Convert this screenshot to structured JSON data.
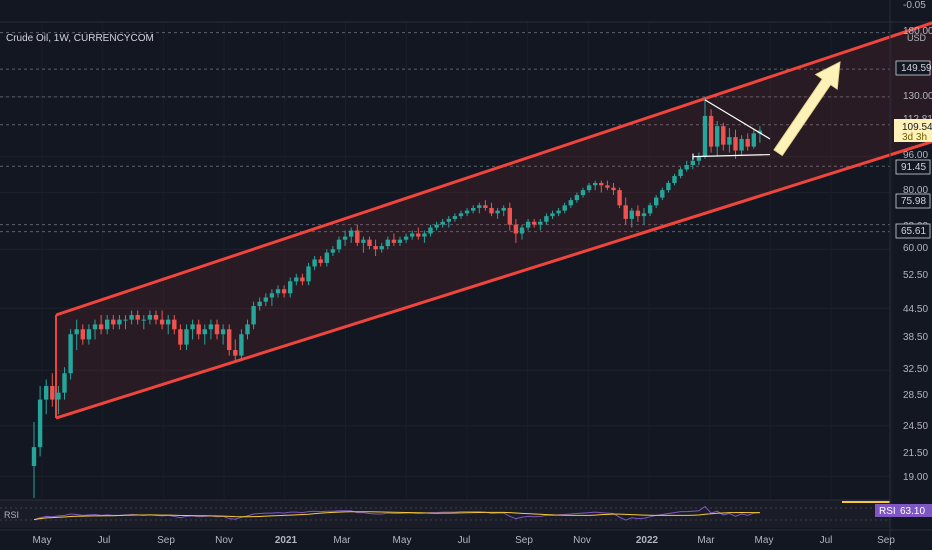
{
  "header": {
    "title": "Crude Oil, 1W, CURRENCYCOM",
    "currency": "USD"
  },
  "colors": {
    "background": "#131722",
    "up": "#26a69a",
    "down": "#ef5350",
    "channel": "#f0453d",
    "arrow": "#fff2b8",
    "rsi": "#7e57c2",
    "rsi_ma": "#f7c93a"
  },
  "price_axis": {
    "ticks": [
      "-0.05",
      "180.00",
      "130.00",
      "112.81",
      "96.00",
      "80.00",
      "68.00",
      "60.00",
      "52.50",
      "44.50",
      "38.50",
      "32.50",
      "28.50",
      "24.50",
      "21.50",
      "19.00"
    ],
    "scale": "log"
  },
  "price_tags": [
    {
      "text": "149.59",
      "style": "dark"
    },
    {
      "text": "109.54",
      "text2": "3d 3h",
      "style": "current"
    },
    {
      "text": "91.45",
      "style": "dark"
    },
    {
      "text": "75.98",
      "style": "dark"
    },
    {
      "text": "65.61",
      "style": "dark"
    }
  ],
  "time_axis": [
    "May",
    "Jul",
    "Sep",
    "Nov",
    "2021",
    "Mar",
    "May",
    "Jul",
    "Sep",
    "Nov",
    "2022",
    "Mar",
    "May",
    "Jul",
    "Sep"
  ],
  "rsi": {
    "label": "RSI",
    "value": "63.10"
  },
  "chart_data": {
    "type": "candlestick",
    "title": "Crude Oil, 1W, CURRENCYCOM",
    "ylabel": "USD",
    "yscale": "log",
    "ylim": [
      17,
      190
    ],
    "x_start": "2020-04-20",
    "interval": "1W",
    "series": [
      {
        "name": "Crude Oil",
        "ohlc": [
          [
            20,
            25,
            17,
            22
          ],
          [
            22,
            30,
            21,
            28
          ],
          [
            28,
            31,
            26,
            30
          ],
          [
            30,
            32,
            27,
            28
          ],
          [
            28,
            30,
            26,
            29
          ],
          [
            29,
            33,
            28,
            32
          ],
          [
            32,
            40,
            31,
            39
          ],
          [
            39,
            42,
            36,
            40
          ],
          [
            40,
            41,
            37,
            38
          ],
          [
            38,
            41,
            37,
            40
          ],
          [
            40,
            42,
            38,
            41
          ],
          [
            41,
            43,
            39,
            40
          ],
          [
            40,
            43,
            39,
            42
          ],
          [
            42,
            43,
            40,
            41
          ],
          [
            41,
            43,
            40,
            42
          ],
          [
            42,
            43,
            40,
            42
          ],
          [
            42,
            44,
            41,
            43
          ],
          [
            43,
            44,
            41,
            42
          ],
          [
            42,
            43,
            40,
            42
          ],
          [
            42,
            44,
            41,
            43
          ],
          [
            43,
            44,
            41,
            42
          ],
          [
            42,
            44,
            40,
            41
          ],
          [
            41,
            43,
            39,
            42
          ],
          [
            42,
            43,
            39,
            40
          ],
          [
            40,
            41,
            36,
            37
          ],
          [
            37,
            41,
            36,
            40
          ],
          [
            40,
            42,
            38,
            41
          ],
          [
            41,
            42,
            38,
            39
          ],
          [
            39,
            41,
            37,
            40
          ],
          [
            40,
            42,
            38,
            41
          ],
          [
            41,
            42,
            38,
            39
          ],
          [
            39,
            41,
            37,
            40
          ],
          [
            40,
            41,
            35,
            36
          ],
          [
            36,
            38,
            34,
            35
          ],
          [
            35,
            40,
            34,
            39
          ],
          [
            39,
            42,
            38,
            41
          ],
          [
            41,
            46,
            40,
            45
          ],
          [
            45,
            47,
            44,
            46
          ],
          [
            46,
            48,
            45,
            47
          ],
          [
            47,
            49,
            45,
            48
          ],
          [
            48,
            50,
            47,
            49
          ],
          [
            49,
            50,
            47,
            48
          ],
          [
            48,
            52,
            47,
            51
          ],
          [
            51,
            53,
            50,
            52
          ],
          [
            52,
            53,
            50,
            51
          ],
          [
            51,
            56,
            50,
            55
          ],
          [
            55,
            58,
            54,
            57
          ],
          [
            57,
            58,
            55,
            56
          ],
          [
            56,
            60,
            55,
            59
          ],
          [
            59,
            61,
            58,
            60
          ],
          [
            60,
            64,
            59,
            63
          ],
          [
            63,
            66,
            61,
            64
          ],
          [
            64,
            67,
            62,
            66
          ],
          [
            66,
            68,
            61,
            62
          ],
          [
            62,
            64,
            59,
            63
          ],
          [
            63,
            64,
            60,
            61
          ],
          [
            61,
            63,
            58,
            60
          ],
          [
            60,
            62,
            59,
            61
          ],
          [
            61,
            64,
            60,
            63
          ],
          [
            63,
            65,
            61,
            62
          ],
          [
            62,
            64,
            61,
            63
          ],
          [
            63,
            65,
            62,
            64
          ],
          [
            64,
            66,
            63,
            65
          ],
          [
            65,
            67,
            63,
            64
          ],
          [
            64,
            66,
            62,
            65
          ],
          [
            65,
            68,
            64,
            67
          ],
          [
            67,
            69,
            66,
            68
          ],
          [
            68,
            70,
            67,
            69
          ],
          [
            69,
            71,
            67,
            70
          ],
          [
            70,
            72,
            69,
            71
          ],
          [
            71,
            73,
            70,
            72
          ],
          [
            72,
            74,
            71,
            73
          ],
          [
            73,
            75,
            72,
            74
          ],
          [
            74,
            76,
            72,
            75
          ],
          [
            75,
            77,
            73,
            74
          ],
          [
            74,
            76,
            71,
            72
          ],
          [
            72,
            74,
            70,
            73
          ],
          [
            73,
            75,
            71,
            74
          ],
          [
            74,
            76,
            66,
            68
          ],
          [
            68,
            70,
            62,
            65
          ],
          [
            65,
            68,
            63,
            67
          ],
          [
            67,
            70,
            66,
            69
          ],
          [
            69,
            70,
            67,
            68
          ],
          [
            68,
            70,
            66,
            69
          ],
          [
            69,
            72,
            68,
            71
          ],
          [
            71,
            73,
            70,
            72
          ],
          [
            72,
            74,
            71,
            73
          ],
          [
            73,
            76,
            72,
            75
          ],
          [
            75,
            78,
            74,
            77
          ],
          [
            77,
            80,
            76,
            79
          ],
          [
            79,
            82,
            78,
            81
          ],
          [
            81,
            84,
            80,
            83
          ],
          [
            83,
            85,
            81,
            84
          ],
          [
            84,
            85,
            80,
            83
          ],
          [
            83,
            85,
            81,
            82
          ],
          [
            82,
            84,
            79,
            81
          ],
          [
            81,
            82,
            74,
            75
          ],
          [
            75,
            78,
            68,
            70
          ],
          [
            70,
            74,
            67,
            73
          ],
          [
            73,
            75,
            69,
            71
          ],
          [
            71,
            74,
            68,
            72
          ],
          [
            72,
            76,
            71,
            75
          ],
          [
            75,
            79,
            74,
            78
          ],
          [
            78,
            82,
            77,
            81
          ],
          [
            81,
            85,
            80,
            84
          ],
          [
            84,
            88,
            83,
            87
          ],
          [
            87,
            91,
            86,
            90
          ],
          [
            90,
            94,
            89,
            92
          ],
          [
            92,
            96,
            90,
            94
          ],
          [
            94,
            98,
            92,
            96
          ],
          [
            96,
            130,
            95,
            118
          ],
          [
            118,
            122,
            98,
            101
          ],
          [
            101,
            115,
            96,
            112
          ],
          [
            112,
            114,
            99,
            102
          ],
          [
            102,
            111,
            98,
            106
          ],
          [
            106,
            110,
            95,
            99
          ],
          [
            99,
            107,
            97,
            105
          ],
          [
            105,
            108,
            99,
            101
          ],
          [
            101,
            110,
            100,
            108
          ],
          [
            108,
            112,
            103,
            109.54
          ]
        ]
      },
      {
        "name": "RSI",
        "values": [
          48,
          52,
          55,
          54,
          56,
          57,
          60,
          59,
          57,
          58,
          59,
          57,
          58,
          57,
          57,
          58,
          59,
          58,
          57,
          58,
          57,
          56,
          57,
          55,
          52,
          55,
          56,
          54,
          55,
          56,
          54,
          55,
          50,
          49,
          53,
          56,
          60,
          61,
          62,
          62,
          63,
          62,
          64,
          64,
          63,
          65,
          66,
          65,
          66,
          66,
          67,
          67,
          67,
          63,
          63,
          61,
          60,
          60,
          62,
          61,
          61,
          62,
          62,
          61,
          62,
          63,
          63,
          64,
          64,
          64,
          65,
          65,
          65,
          65,
          64,
          61,
          62,
          62,
          55,
          50,
          53,
          55,
          54,
          55,
          57,
          57,
          58,
          59,
          60,
          61,
          62,
          63,
          64,
          63,
          62,
          61,
          53,
          47,
          52,
          50,
          51,
          54,
          57,
          59,
          61,
          63,
          65,
          65,
          66,
          67,
          76,
          62,
          66,
          58,
          61,
          55,
          60,
          57,
          62,
          63
        ]
      }
    ],
    "channel": {
      "upper": [
        [
          0,
          43
        ],
        [
          147,
          190
        ]
      ],
      "lower": [
        [
          0,
          25.5
        ],
        [
          147,
          104
        ]
      ]
    },
    "triangle": {
      "points": [
        [
          110,
          128
        ],
        [
          120,
          105
        ],
        [
          110,
          96
        ],
        [
          120,
          97
        ]
      ]
    },
    "target_arrow": {
      "from": [
        121,
        102
      ],
      "to": [
        131,
        150
      ]
    },
    "horizontal_levels": [
      180,
      149.59,
      130,
      112.81,
      91.45,
      68,
      65.61
    ],
    "xlabel": "",
    "grid": true
  }
}
